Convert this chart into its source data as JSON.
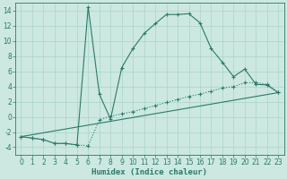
{
  "xlabel": "Humidex (Indice chaleur)",
  "bg_color": "#cce8e0",
  "line_color": "#2a7a6a",
  "xlim": [
    -0.5,
    23.5
  ],
  "ylim": [
    -5,
    15
  ],
  "yticks": [
    -4,
    -2,
    0,
    2,
    4,
    6,
    8,
    10,
    12,
    14
  ],
  "xticks": [
    0,
    1,
    2,
    3,
    4,
    5,
    6,
    7,
    8,
    9,
    10,
    11,
    12,
    13,
    14,
    15,
    16,
    17,
    18,
    19,
    20,
    21,
    22,
    23
  ],
  "curve1_x": [
    0,
    1,
    2,
    3,
    4,
    5,
    6,
    7,
    8,
    9,
    10,
    11,
    12,
    13,
    14,
    15,
    16,
    17,
    18,
    19,
    20,
    21,
    22,
    23
  ],
  "curve1_y": [
    -2.6,
    -2.8,
    -3.0,
    -3.5,
    -3.5,
    -3.7,
    14.5,
    3.0,
    -0.3,
    6.5,
    9.0,
    11.0,
    12.3,
    13.5,
    13.5,
    13.6,
    12.4,
    9.0,
    7.2,
    5.3,
    6.3,
    4.3,
    4.2,
    3.2
  ],
  "curve2_x": [
    0,
    1,
    2,
    3,
    4,
    5,
    6,
    7,
    8,
    9,
    10,
    11,
    12,
    13,
    14,
    15,
    16,
    17,
    18,
    19,
    20,
    21,
    22,
    23
  ],
  "curve2_y": [
    -2.6,
    -2.8,
    -3.0,
    -3.5,
    -3.5,
    -3.7,
    -3.8,
    -0.4,
    0.1,
    0.4,
    0.7,
    1.1,
    1.5,
    1.9,
    2.3,
    2.7,
    3.0,
    3.4,
    3.8,
    4.0,
    4.5,
    4.5,
    4.3,
    3.2
  ],
  "curve3_x": [
    0,
    23
  ],
  "curve3_y": [
    -2.6,
    3.2
  ],
  "grid_color": "#aad4c8",
  "tick_fontsize": 5.5,
  "xlabel_fontsize": 6.5
}
